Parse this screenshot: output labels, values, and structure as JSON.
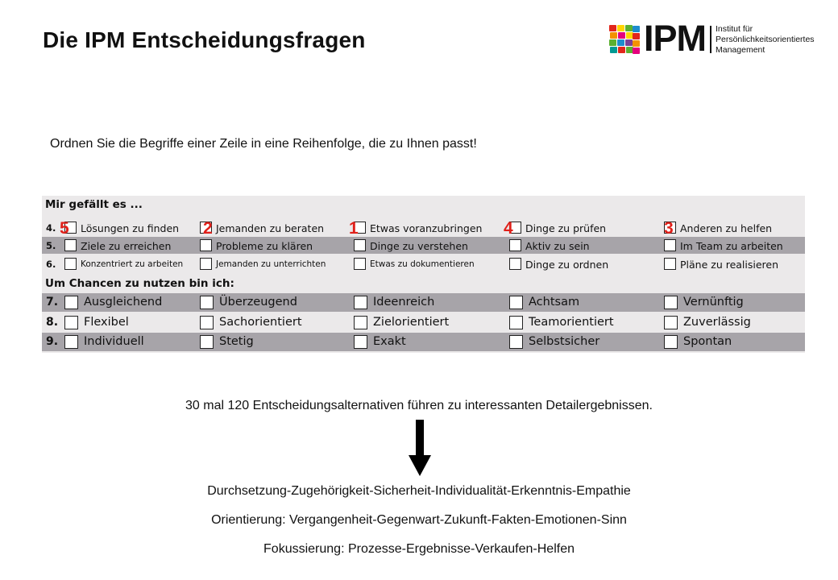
{
  "slide": {
    "title": "Die IPM Entscheidungsfragen",
    "instruction": "Ordnen Sie die Begriffe einer Zeile in eine Reihenfolge, die zu Ihnen passt!",
    "summary": "30 mal 120 Entscheidungsalternativen führen zu interessanten Detailergebnissen.",
    "outcomes": [
      "Durchsetzung-Zugehörigkeit-Sicherheit-Individualität-Erkenntnis-Empathie",
      "Orientierung: Vergangenheit-Gegenwart-Zukunft-Fakten-Emotionen-Sinn",
      "Fokussierung: Prozesse-Ergebnisse-Verkaufen-Helfen"
    ]
  },
  "logo": {
    "text": "IPM",
    "subtitle_lines": [
      "Institut für",
      "Persönlichkeitsorientiertes",
      "Management"
    ],
    "mosaic_colors": [
      "#e2261c",
      "#f39200",
      "#ffd500",
      "#5bb030",
      "#1d8ccd",
      "#7b3f98",
      "#e5007d",
      "#009a93"
    ]
  },
  "form": {
    "section1": "Mir gefällt es ...",
    "section2": "Um Chancen zu nutzen bin ich:",
    "rows": [
      {
        "num": "4.",
        "items": [
          "Lösungen zu finden",
          "Jemanden zu beraten",
          "Etwas voranzubringen",
          "Dinge zu prüfen",
          "Anderen zu helfen"
        ]
      },
      {
        "num": "5.",
        "items": [
          "Ziele zu erreichen",
          "Probleme zu klären",
          "Dinge zu verstehen",
          "Aktiv zu sein",
          "Im Team zu arbeiten"
        ]
      },
      {
        "num": "6.",
        "items": [
          "Konzentriert zu arbeiten",
          "Jemanden zu unterrichten",
          "Etwas zu dokumentieren",
          "Dinge zu ordnen",
          "Pläne zu realisieren"
        ]
      },
      {
        "num": "7.",
        "items": [
          "Ausgleichend",
          "Überzeugend",
          "Ideenreich",
          "Achtsam",
          "Vernünftig"
        ]
      },
      {
        "num": "8.",
        "items": [
          "Flexibel",
          "Sachorientiert",
          "Zielorientiert",
          "Teamorientiert",
          "Zuverlässig"
        ]
      },
      {
        "num": "9.",
        "items": [
          "Individuell",
          "Stetig",
          "Exakt",
          "Selbstsicher",
          "Spontan"
        ]
      }
    ],
    "ranks": [
      "5",
      "2",
      "1",
      "4",
      "3"
    ]
  }
}
